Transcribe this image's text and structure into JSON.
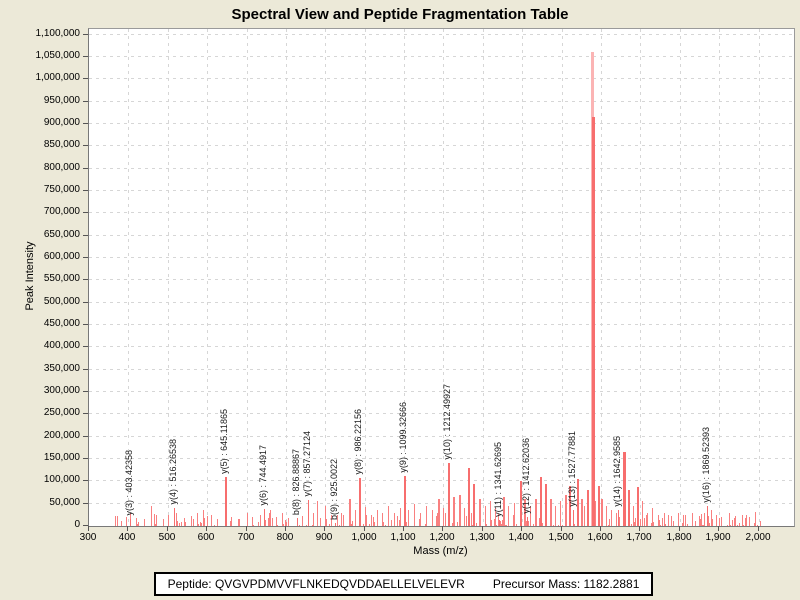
{
  "title": "Spectral View and Peptide Fragmentation Table",
  "footer": {
    "peptide": "Peptide: QVGVPDMVVFLNKEDQVDDAELLELVELEVR",
    "precursor": "Precursor Mass: 1182.2881"
  },
  "chart_data": {
    "type": "bar",
    "title": "Spectral View and Peptide Fragmentation Table",
    "xlabel": "Mass (m/z)",
    "ylabel": "Peak Intensity",
    "xlim": [
      300,
      2090
    ],
    "ylim": [
      0,
      1112500
    ],
    "x_ticks": [
      300,
      400,
      500,
      600,
      700,
      800,
      900,
      1000,
      1100,
      1200,
      1300,
      1400,
      1500,
      1600,
      1700,
      1800,
      1900,
      2000
    ],
    "y_ticks": [
      0,
      50000,
      100000,
      150000,
      200000,
      250000,
      300000,
      350000,
      400000,
      450000,
      500000,
      550000,
      600000,
      650000,
      700000,
      750000,
      800000,
      850000,
      900000,
      950000,
      1000000,
      1050000,
      1100000
    ],
    "grid": "dashed",
    "legend": "none",
    "bar_color": "#f98080",
    "base_peak_color_light": "#fbb4b4",
    "labeled_peaks": [
      {
        "text": "y(3) : 403.42358",
        "ion": "y(3)",
        "mz": 403.42358,
        "intensity": 16000
      },
      {
        "text": "y(4) : 516.26538",
        "ion": "y(4)",
        "mz": 516.26538,
        "intensity": 40000
      },
      {
        "text": "y(5) : 645.11865",
        "ion": "y(5)",
        "mz": 645.11865,
        "intensity": 110000
      },
      {
        "text": "y(6) : 744.4917",
        "ion": "y(6)",
        "mz": 744.4917,
        "intensity": 38000
      },
      {
        "text": "b(8) : 826.88867",
        "ion": "b(8)",
        "mz": 826.88867,
        "intensity": 18000
      },
      {
        "text": "y(7) : 857.27124",
        "ion": "y(7)",
        "mz": 857.27124,
        "intensity": 58000
      },
      {
        "text": "b(9) : 925.0022",
        "ion": "b(9)",
        "mz": 925.0022,
        "intensity": 6000
      },
      {
        "text": "y(8) : 986.22156",
        "ion": "y(8)",
        "mz": 986.22156,
        "intensity": 107000
      },
      {
        "text": "y(9) : 1099.32666",
        "ion": "y(9)",
        "mz": 1099.32666,
        "intensity": 112000
      },
      {
        "text": "y(10) : 1212.49927",
        "ion": "y(10)",
        "mz": 1212.49927,
        "intensity": 140000
      },
      {
        "text": "y(11) : 1341.62695",
        "ion": "y(11)",
        "mz": 1341.62695,
        "intensity": 14000
      },
      {
        "text": "y(12) : 1412.62036",
        "ion": "y(12)",
        "mz": 1412.62036,
        "intensity": 20000
      },
      {
        "text": "y(13) : 1527.77881",
        "ion": "y(13)",
        "mz": 1527.77881,
        "intensity": 35000
      },
      {
        "text": "y(14) : 1642.9585",
        "ion": "y(14)",
        "mz": 1642.9585,
        "intensity": 35000
      },
      {
        "text": "y(16) : 1869.52393",
        "ion": "y(16)",
        "mz": 1869.52393,
        "intensity": 45000
      }
    ],
    "base_peaks": [
      {
        "mz": 1574.5,
        "intensity": 1060000,
        "shade": "light"
      },
      {
        "mz": 1577.5,
        "intensity": 915000,
        "shade": "normal"
      }
    ],
    "unlabeled_peaks": [
      [
        365,
        22000
      ],
      [
        380,
        12000
      ],
      [
        420,
        18000
      ],
      [
        440,
        15000
      ],
      [
        458,
        45000
      ],
      [
        470,
        20000
      ],
      [
        488,
        15000
      ],
      [
        520,
        30000
      ],
      [
        540,
        18000
      ],
      [
        558,
        22000
      ],
      [
        575,
        30000
      ],
      [
        590,
        35000
      ],
      [
        610,
        25000
      ],
      [
        625,
        15000
      ],
      [
        660,
        20000
      ],
      [
        680,
        15000
      ],
      [
        700,
        28000
      ],
      [
        715,
        20000
      ],
      [
        735,
        25000
      ],
      [
        760,
        35000
      ],
      [
        775,
        20000
      ],
      [
        790,
        30000
      ],
      [
        805,
        18000
      ],
      [
        840,
        22000
      ],
      [
        870,
        30000
      ],
      [
        880,
        55000
      ],
      [
        900,
        45000
      ],
      [
        915,
        25000
      ],
      [
        940,
        30000
      ],
      [
        960,
        60000
      ],
      [
        975,
        35000
      ],
      [
        1000,
        42000
      ],
      [
        1015,
        25000
      ],
      [
        1030,
        35000
      ],
      [
        1045,
        28000
      ],
      [
        1060,
        45000
      ],
      [
        1075,
        30000
      ],
      [
        1090,
        40000
      ],
      [
        1110,
        35000
      ],
      [
        1125,
        50000
      ],
      [
        1140,
        30000
      ],
      [
        1155,
        45000
      ],
      [
        1170,
        35000
      ],
      [
        1185,
        60000
      ],
      [
        1200,
        40000
      ],
      [
        1225,
        65000
      ],
      [
        1240,
        70000
      ],
      [
        1252,
        40000
      ],
      [
        1263,
        130000
      ],
      [
        1275,
        95000
      ],
      [
        1290,
        60000
      ],
      [
        1305,
        45000
      ],
      [
        1318,
        55000
      ],
      [
        1332,
        40000
      ],
      [
        1350,
        65000
      ],
      [
        1365,
        45000
      ],
      [
        1380,
        52000
      ],
      [
        1395,
        100000
      ],
      [
        1405,
        60000
      ],
      [
        1420,
        45000
      ],
      [
        1432,
        60000
      ],
      [
        1445,
        110000
      ],
      [
        1458,
        95000
      ],
      [
        1470,
        60000
      ],
      [
        1482,
        45000
      ],
      [
        1495,
        55000
      ],
      [
        1508,
        70000
      ],
      [
        1518,
        90000
      ],
      [
        1538,
        105000
      ],
      [
        1548,
        60000
      ],
      [
        1558,
        45000
      ],
      [
        1565,
        80000
      ],
      [
        1585,
        55000
      ],
      [
        1592,
        90000
      ],
      [
        1600,
        60000
      ],
      [
        1612,
        45000
      ],
      [
        1625,
        35000
      ],
      [
        1638,
        28000
      ],
      [
        1655,
        165000
      ],
      [
        1668,
        80000
      ],
      [
        1680,
        45000
      ],
      [
        1692,
        88000
      ],
      [
        1705,
        55000
      ],
      [
        1718,
        30000
      ],
      [
        1730,
        40000
      ],
      [
        1745,
        25000
      ],
      [
        1760,
        30000
      ],
      [
        1778,
        22000
      ],
      [
        1795,
        30000
      ],
      [
        1812,
        25000
      ],
      [
        1830,
        28000
      ],
      [
        1848,
        22000
      ],
      [
        1862,
        30000
      ],
      [
        1878,
        35000
      ],
      [
        1892,
        25000
      ],
      [
        1905,
        20000
      ],
      [
        1925,
        30000
      ],
      [
        1940,
        22000
      ],
      [
        1958,
        25000
      ],
      [
        1975,
        20000
      ],
      [
        1992,
        32000
      ]
    ],
    "noise": {
      "seed": 97,
      "count": 175,
      "mz_min": 362,
      "mz_max": 2005,
      "i_min": 2000,
      "i_max": 30000
    }
  }
}
